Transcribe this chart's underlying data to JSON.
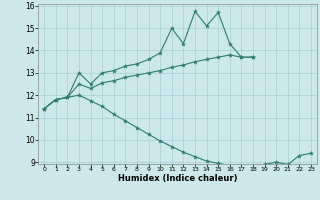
{
  "xlabel": "Humidex (Indice chaleur)",
  "x_values": [
    0,
    1,
    2,
    3,
    4,
    5,
    6,
    7,
    8,
    9,
    10,
    11,
    12,
    13,
    14,
    15,
    16,
    17,
    18,
    19,
    20,
    21,
    22,
    23
  ],
  "line_upper": [
    11.4,
    11.8,
    11.9,
    13.0,
    12.5,
    13.0,
    13.1,
    13.3,
    13.4,
    13.6,
    13.9,
    15.0,
    14.3,
    15.75,
    15.1,
    15.7,
    14.3,
    13.7,
    13.7,
    null,
    null,
    null,
    null,
    null
  ],
  "line_middle": [
    11.4,
    11.8,
    11.9,
    12.5,
    12.3,
    12.55,
    12.65,
    12.8,
    12.9,
    13.0,
    13.1,
    13.25,
    13.35,
    13.5,
    13.6,
    13.7,
    13.8,
    13.7,
    13.7,
    null,
    null,
    null,
    null,
    null
  ],
  "line_lower": [
    11.4,
    11.8,
    11.9,
    12.0,
    11.75,
    11.5,
    11.15,
    10.85,
    10.55,
    10.25,
    9.95,
    9.7,
    9.45,
    9.25,
    9.05,
    8.95,
    8.85,
    8.85,
    8.85,
    8.9,
    9.0,
    8.9,
    9.3,
    9.4
  ],
  "color": "#2e7d6e",
  "bg_color": "#cce8ea",
  "grid_color": "#a8cfd3",
  "ylim_min": 9,
  "ylim_max": 16,
  "xlim_min": -0.5,
  "xlim_max": 23.5,
  "yticks": [
    9,
    10,
    11,
    12,
    13,
    14,
    15,
    16
  ],
  "xticks": [
    0,
    1,
    2,
    3,
    4,
    5,
    6,
    7,
    8,
    9,
    10,
    11,
    12,
    13,
    14,
    15,
    16,
    17,
    18,
    19,
    20,
    21,
    22,
    23
  ]
}
